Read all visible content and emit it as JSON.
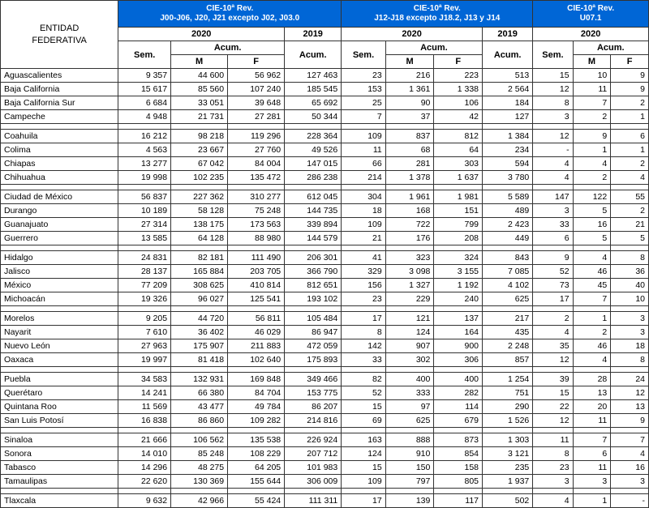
{
  "headers": {
    "entity": "ENTIDAD\nFEDERATIVA",
    "group1": "CIE-10ª Rev.\nJ00-J06, J20, J21 excepto J02, J03.0",
    "group2": "CIE-10ª Rev.\nJ12-J18 excepto J18.2, J13 y J14",
    "group3": "CIE-10ª Rev.\nU07.1",
    "y2020": "2020",
    "y2019": "2019",
    "sem": "Sem.",
    "acum": "Acum.",
    "m": "M",
    "f": "F"
  },
  "rows": [
    {
      "g": 0,
      "name": "Aguascalientes",
      "sem1": "9 357",
      "m1": "44 600",
      "f1": "56 962",
      "a1": "127 463",
      "sem2": "23",
      "m2": "216",
      "f2": "223",
      "a2": "513",
      "sem3": "15",
      "m3": "10",
      "f3": "9"
    },
    {
      "g": 0,
      "name": "Baja California",
      "sem1": "15 617",
      "m1": "85 560",
      "f1": "107 240",
      "a1": "185 545",
      "sem2": "153",
      "m2": "1 361",
      "f2": "1 338",
      "a2": "2 564",
      "sem3": "12",
      "m3": "11",
      "f3": "9"
    },
    {
      "g": 0,
      "name": "Baja California Sur",
      "sem1": "6 684",
      "m1": "33 051",
      "f1": "39 648",
      "a1": "65 692",
      "sem2": "25",
      "m2": "90",
      "f2": "106",
      "a2": "184",
      "sem3": "8",
      "m3": "7",
      "f3": "2"
    },
    {
      "g": 0,
      "name": "Campeche",
      "sem1": "4 948",
      "m1": "21 731",
      "f1": "27 281",
      "a1": "50 344",
      "sem2": "7",
      "m2": "37",
      "f2": "42",
      "a2": "127",
      "sem3": "3",
      "m3": "2",
      "f3": "1"
    },
    {
      "g": 1,
      "name": "Coahuila",
      "sem1": "16 212",
      "m1": "98 218",
      "f1": "119 296",
      "a1": "228 364",
      "sem2": "109",
      "m2": "837",
      "f2": "812",
      "a2": "1 384",
      "sem3": "12",
      "m3": "9",
      "f3": "6"
    },
    {
      "g": 1,
      "name": "Colima",
      "sem1": "4 563",
      "m1": "23 667",
      "f1": "27 760",
      "a1": "49 526",
      "sem2": "11",
      "m2": "68",
      "f2": "64",
      "a2": "234",
      "sem3": "-",
      "m3": "1",
      "f3": "1"
    },
    {
      "g": 1,
      "name": "Chiapas",
      "sem1": "13 277",
      "m1": "67 042",
      "f1": "84 004",
      "a1": "147 015",
      "sem2": "66",
      "m2": "281",
      "f2": "303",
      "a2": "594",
      "sem3": "4",
      "m3": "4",
      "f3": "2"
    },
    {
      "g": 1,
      "name": "Chihuahua",
      "sem1": "19 998",
      "m1": "102 235",
      "f1": "135 472",
      "a1": "286 238",
      "sem2": "214",
      "m2": "1 378",
      "f2": "1 637",
      "a2": "3 780",
      "sem3": "4",
      "m3": "2",
      "f3": "4"
    },
    {
      "g": 2,
      "name": "Ciudad de México",
      "sem1": "56 837",
      "m1": "227 362",
      "f1": "310 277",
      "a1": "612 045",
      "sem2": "304",
      "m2": "1 961",
      "f2": "1 981",
      "a2": "5 589",
      "sem3": "147",
      "m3": "122",
      "f3": "55"
    },
    {
      "g": 2,
      "name": "Durango",
      "sem1": "10 189",
      "m1": "58 128",
      "f1": "75 248",
      "a1": "144 735",
      "sem2": "18",
      "m2": "168",
      "f2": "151",
      "a2": "489",
      "sem3": "3",
      "m3": "5",
      "f3": "2"
    },
    {
      "g": 2,
      "name": "Guanajuato",
      "sem1": "27 314",
      "m1": "138 175",
      "f1": "173 563",
      "a1": "339 894",
      "sem2": "109",
      "m2": "722",
      "f2": "799",
      "a2": "2 423",
      "sem3": "33",
      "m3": "16",
      "f3": "21"
    },
    {
      "g": 2,
      "name": "Guerrero",
      "sem1": "13 585",
      "m1": "64 128",
      "f1": "88 980",
      "a1": "144 579",
      "sem2": "21",
      "m2": "176",
      "f2": "208",
      "a2": "449",
      "sem3": "6",
      "m3": "5",
      "f3": "5"
    },
    {
      "g": 3,
      "name": "Hidalgo",
      "sem1": "24 831",
      "m1": "82 181",
      "f1": "111 490",
      "a1": "206 301",
      "sem2": "41",
      "m2": "323",
      "f2": "324",
      "a2": "843",
      "sem3": "9",
      "m3": "4",
      "f3": "8"
    },
    {
      "g": 3,
      "name": "Jalisco",
      "sem1": "28 137",
      "m1": "165 884",
      "f1": "203 705",
      "a1": "366 790",
      "sem2": "329",
      "m2": "3 098",
      "f2": "3 155",
      "a2": "7 085",
      "sem3": "52",
      "m3": "46",
      "f3": "36"
    },
    {
      "g": 3,
      "name": "México",
      "sem1": "77 209",
      "m1": "308 625",
      "f1": "410 814",
      "a1": "812 651",
      "sem2": "156",
      "m2": "1 327",
      "f2": "1 192",
      "a2": "4 102",
      "sem3": "73",
      "m3": "45",
      "f3": "40"
    },
    {
      "g": 3,
      "name": "Michoacán",
      "sem1": "19 326",
      "m1": "96 027",
      "f1": "125 541",
      "a1": "193 102",
      "sem2": "23",
      "m2": "229",
      "f2": "240",
      "a2": "625",
      "sem3": "17",
      "m3": "7",
      "f3": "10"
    },
    {
      "g": 4,
      "name": "Morelos",
      "sem1": "9 205",
      "m1": "44 720",
      "f1": "56 811",
      "a1": "105 484",
      "sem2": "17",
      "m2": "121",
      "f2": "137",
      "a2": "217",
      "sem3": "2",
      "m3": "1",
      "f3": "3"
    },
    {
      "g": 4,
      "name": "Nayarit",
      "sem1": "7 610",
      "m1": "36 402",
      "f1": "46 029",
      "a1": "86 947",
      "sem2": "8",
      "m2": "124",
      "f2": "164",
      "a2": "435",
      "sem3": "4",
      "m3": "2",
      "f3": "3"
    },
    {
      "g": 4,
      "name": "Nuevo León",
      "sem1": "27 963",
      "m1": "175 907",
      "f1": "211 883",
      "a1": "472 059",
      "sem2": "142",
      "m2": "907",
      "f2": "900",
      "a2": "2 248",
      "sem3": "35",
      "m3": "46",
      "f3": "18"
    },
    {
      "g": 4,
      "name": "Oaxaca",
      "sem1": "19 997",
      "m1": "81 418",
      "f1": "102 640",
      "a1": "175 893",
      "sem2": "33",
      "m2": "302",
      "f2": "306",
      "a2": "857",
      "sem3": "12",
      "m3": "4",
      "f3": "8"
    },
    {
      "g": 5,
      "name": "Puebla",
      "sem1": "34 583",
      "m1": "132 931",
      "f1": "169 848",
      "a1": "349 466",
      "sem2": "82",
      "m2": "400",
      "f2": "400",
      "a2": "1 254",
      "sem3": "39",
      "m3": "28",
      "f3": "24"
    },
    {
      "g": 5,
      "name": "Querétaro",
      "sem1": "14 241",
      "m1": "66 380",
      "f1": "84 704",
      "a1": "153 775",
      "sem2": "52",
      "m2": "333",
      "f2": "282",
      "a2": "751",
      "sem3": "15",
      "m3": "13",
      "f3": "12"
    },
    {
      "g": 5,
      "name": "Quintana Roo",
      "sem1": "11 569",
      "m1": "43 477",
      "f1": "49 784",
      "a1": "86 207",
      "sem2": "15",
      "m2": "97",
      "f2": "114",
      "a2": "290",
      "sem3": "22",
      "m3": "20",
      "f3": "13"
    },
    {
      "g": 5,
      "name": "San Luis Potosí",
      "sem1": "16 838",
      "m1": "86 860",
      "f1": "109 282",
      "a1": "214 816",
      "sem2": "69",
      "m2": "625",
      "f2": "679",
      "a2": "1 526",
      "sem3": "12",
      "m3": "11",
      "f3": "9"
    },
    {
      "g": 6,
      "name": "Sinaloa",
      "sem1": "21 666",
      "m1": "106 562",
      "f1": "135 538",
      "a1": "226 924",
      "sem2": "163",
      "m2": "888",
      "f2": "873",
      "a2": "1 303",
      "sem3": "11",
      "m3": "7",
      "f3": "7"
    },
    {
      "g": 6,
      "name": "Sonora",
      "sem1": "14 010",
      "m1": "85 248",
      "f1": "108 229",
      "a1": "207 712",
      "sem2": "124",
      "m2": "910",
      "f2": "854",
      "a2": "3 121",
      "sem3": "8",
      "m3": "6",
      "f3": "4"
    },
    {
      "g": 6,
      "name": "Tabasco",
      "sem1": "14 296",
      "m1": "48 275",
      "f1": "64 205",
      "a1": "101 983",
      "sem2": "15",
      "m2": "150",
      "f2": "158",
      "a2": "235",
      "sem3": "23",
      "m3": "11",
      "f3": "16"
    },
    {
      "g": 6,
      "name": "Tamaulipas",
      "sem1": "22 620",
      "m1": "130 369",
      "f1": "155 644",
      "a1": "306 009",
      "sem2": "109",
      "m2": "797",
      "f2": "805",
      "a2": "1 937",
      "sem3": "3",
      "m3": "3",
      "f3": "3"
    },
    {
      "g": 7,
      "name": "Tlaxcala",
      "sem1": "9 632",
      "m1": "42 966",
      "f1": "55 424",
      "a1": "111 311",
      "sem2": "17",
      "m2": "139",
      "f2": "117",
      "a2": "502",
      "sem3": "4",
      "m3": "1",
      "f3": "-"
    }
  ]
}
